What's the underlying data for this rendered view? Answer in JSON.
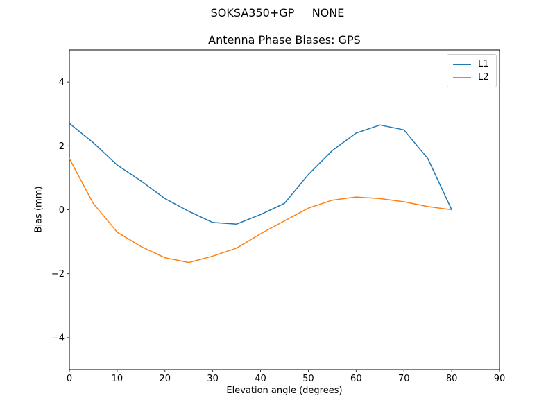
{
  "figure": {
    "suptitle": "SOKSA350+GP     NONE",
    "background": "#ffffff"
  },
  "chart_data": {
    "type": "line",
    "title": "Antenna Phase Biases: GPS",
    "xlabel": "Elevation angle (degrees)",
    "ylabel": "Bias (mm)",
    "xlim": [
      0,
      90
    ],
    "ylim": [
      -5,
      5
    ],
    "xticks": [
      0,
      10,
      20,
      30,
      40,
      50,
      60,
      70,
      80,
      90
    ],
    "yticks": [
      -4,
      -2,
      0,
      2,
      4
    ],
    "grid": false,
    "x": [
      0,
      5,
      10,
      15,
      20,
      25,
      30,
      35,
      40,
      45,
      50,
      55,
      60,
      65,
      70,
      75,
      80
    ],
    "series": [
      {
        "name": "L1",
        "color": "#1f77b4",
        "values": [
          2.7,
          2.1,
          1.4,
          0.9,
          0.35,
          -0.05,
          -0.4,
          -0.45,
          -0.15,
          0.2,
          1.1,
          1.85,
          2.4,
          2.65,
          2.5,
          1.6,
          0.0
        ]
      },
      {
        "name": "L2",
        "color": "#ff7f0e",
        "values": [
          1.6,
          0.2,
          -0.7,
          -1.15,
          -1.5,
          -1.65,
          -1.45,
          -1.2,
          -0.75,
          -0.35,
          0.05,
          0.3,
          0.4,
          0.35,
          0.25,
          0.1,
          0.0
        ]
      }
    ],
    "legend": {
      "position": "upper-right",
      "entries": [
        "L1",
        "L2"
      ]
    }
  }
}
